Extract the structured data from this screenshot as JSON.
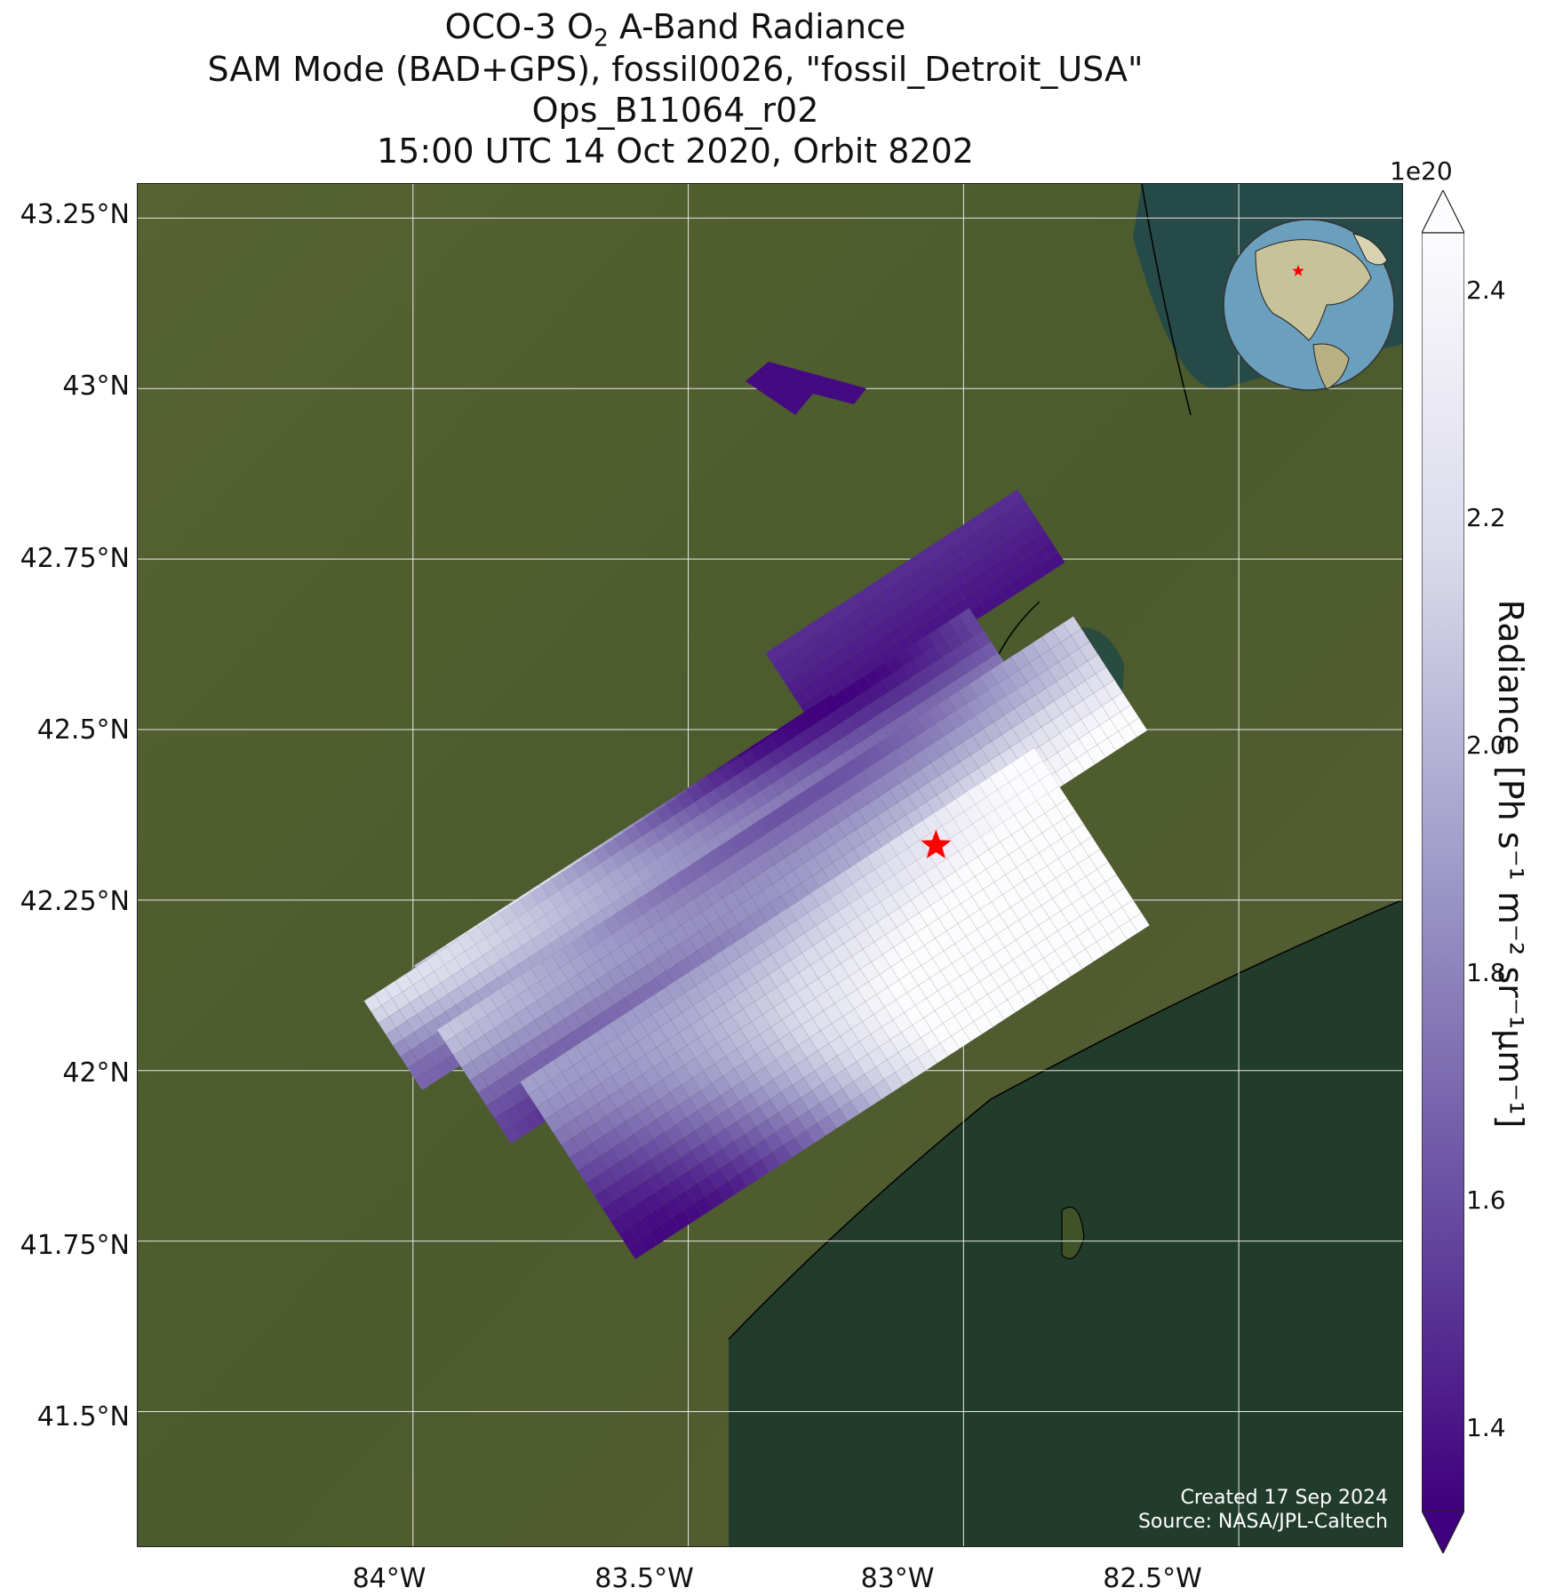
{
  "title": {
    "line1_pre": "OCO-3 O",
    "line1_sub": "2",
    "line1_post": " A-Band Radiance",
    "line2": "SAM Mode (BAD+GPS), fossil0026, \"fossil_Detroit_USA\"",
    "line3": "Ops_B11064_r02",
    "line4": "15:00 UTC 14 Oct 2020, Orbit 8202"
  },
  "axes": {
    "lat_ticks": [
      "43.25°N",
      "43°N",
      "42.75°N",
      "42.5°N",
      "42.25°N",
      "42°N",
      "41.75°N",
      "41.5°N"
    ],
    "lon_ticks": [
      "84°W",
      "83.5°W",
      "83°W",
      "82.5°W"
    ],
    "lat_values": [
      43.25,
      43.0,
      42.75,
      42.5,
      42.25,
      42.0,
      41.75,
      41.5
    ],
    "lon_values": [
      -84.0,
      -83.5,
      -83.0,
      -82.5
    ],
    "lat_range": [
      41.3,
      43.3
    ],
    "lon_range": [
      -84.5,
      -82.2
    ],
    "gridlines": true
  },
  "colorbar": {
    "exponent": "1e20",
    "ticks": [
      "2.4",
      "2.2",
      "2.0",
      "1.8",
      "1.6",
      "1.4"
    ],
    "tick_values": [
      2.4,
      2.2,
      2.0,
      1.8,
      1.6,
      1.4
    ],
    "range": [
      1.35,
      2.45
    ],
    "extend": "both",
    "colormap": "Purples_r",
    "label": "Radiance [Ph s⁻¹ m⁻² sr⁻¹μm⁻¹]"
  },
  "target": {
    "name": "fossil_Detroit_USA",
    "lat": 42.33,
    "lon": -83.05,
    "marker": "red-star"
  },
  "inset": {
    "type": "globe",
    "marker": "red-star"
  },
  "credit": {
    "line1": "Created 17 Sep 2024",
    "line2": "Source: NASA/JPL-Caltech"
  },
  "colors": {
    "land": "#4a5a2c",
    "lake": "#24412f",
    "low": "#3f007d",
    "high": "#fcfbfd",
    "target_star": "#ff0000",
    "gridline": "#e8e8e8"
  }
}
